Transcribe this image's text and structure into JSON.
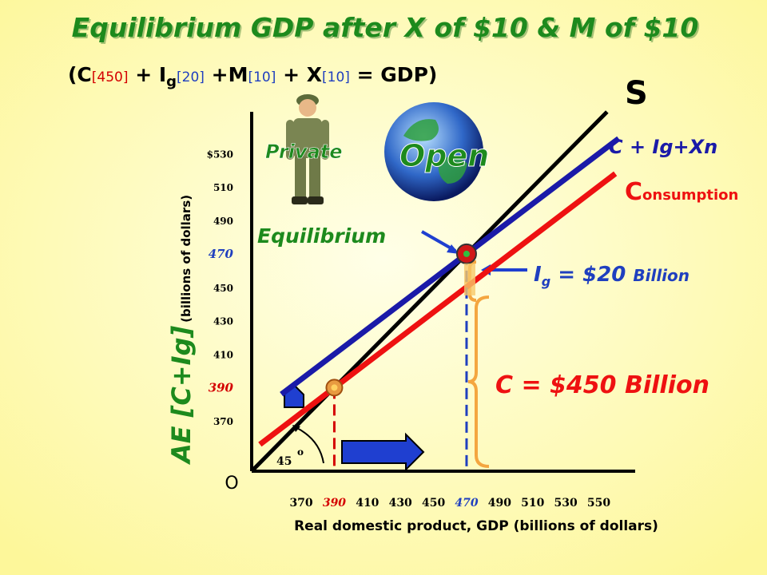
{
  "chart_data": {
    "type": "line",
    "title": "Equilibrium GDP after X of $10 & M of $10",
    "subtitle_parts": [
      "(C",
      "[450]",
      " + I",
      "g",
      "[20]",
      " +M",
      "[10]",
      " + X",
      "[10]",
      " = GDP)"
    ],
    "x_label": "Real domestic product, GDP (billions of dollars)",
    "y_label": "AE [C+Ig]",
    "y_label_unit": "(billions of dollars)",
    "origin_label": "O",
    "xlim": [
      340,
      572
    ],
    "ylim": [
      340,
      555
    ],
    "xticks": [
      370,
      390,
      410,
      430,
      450,
      470,
      490,
      510,
      530,
      550
    ],
    "yticks": [
      370,
      390,
      410,
      430,
      450,
      470,
      490,
      {
        "value": 530,
        "label": "$530"
      },
      510
    ],
    "tick_highlights": [
      {
        "value": 390,
        "color": "#d40000"
      },
      {
        "value": 470,
        "color": "#1f3fbf"
      }
    ],
    "series": [
      {
        "name": "S",
        "color": "#000000",
        "x": [
          340,
          555
        ],
        "values": [
          340,
          555
        ]
      },
      {
        "name": "C + Ig+Xn",
        "color": "#1a1aa8",
        "x": [
          358,
          562
        ],
        "values": [
          386,
          539
        ]
      },
      {
        "name_parts": [
          "C",
          "onsumption"
        ],
        "color": "#ee1111",
        "x": [
          345,
          560
        ],
        "values": [
          356,
          518
        ]
      }
    ],
    "points": [
      {
        "name": "Equilibrium",
        "x": 470,
        "y": 470,
        "color": "#1f3fbf"
      },
      {
        "x": 390,
        "y": 390,
        "color": "#d40000"
      }
    ],
    "annotations": {
      "private": "Private",
      "open": "Open",
      "ig_parts": [
        "I",
        "g",
        " = $20 ",
        "Billion"
      ],
      "c_total": "C = $450 Billion",
      "angle": "45",
      "degree": "o"
    }
  }
}
